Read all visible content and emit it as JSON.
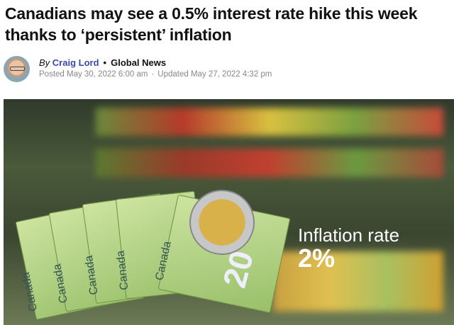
{
  "article": {
    "title": "Canadians may see a 0.5% interest rate hike this week thanks to ‘persistent’ inflation",
    "byline": {
      "by": "By",
      "author": "Craig Lord",
      "separator": "•",
      "source": "Global News",
      "posted": "Posted May 30, 2022 6:00 am",
      "date_separator": "·",
      "updated": "Updated May 27, 2022 4:32 pm"
    },
    "hero_image": {
      "overlay_line1": "Inflation rate",
      "overlay_line2": "2%",
      "banknote_text": "Canada",
      "banknote_value": "20"
    }
  }
}
